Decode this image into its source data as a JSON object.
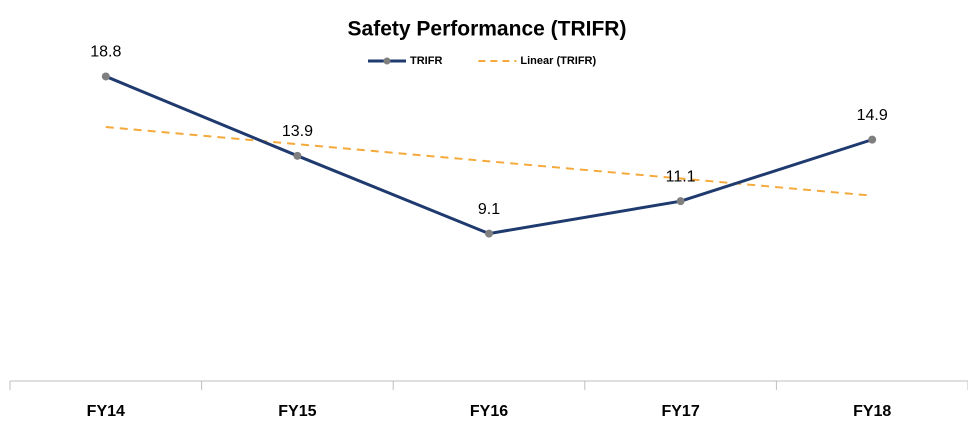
{
  "chart_data": {
    "type": "line",
    "title": "Safety Performance (TRIFR)",
    "categories": [
      "FY14",
      "FY15",
      "FY16",
      "FY17",
      "FY18"
    ],
    "series": [
      {
        "name": "TRIFR",
        "color": "#1f3a6e",
        "marker_color": "#7f7f7f",
        "values": [
          18.8,
          13.9,
          9.1,
          11.1,
          14.9
        ]
      },
      {
        "name": "Linear (TRIFR)",
        "color": "#f5a93a",
        "dashed": true,
        "values": [
          15.68,
          14.62,
          13.56,
          12.5,
          11.44
        ]
      }
    ],
    "ylim": [
      0,
      20
    ],
    "legend": "top",
    "data_labels": true
  }
}
